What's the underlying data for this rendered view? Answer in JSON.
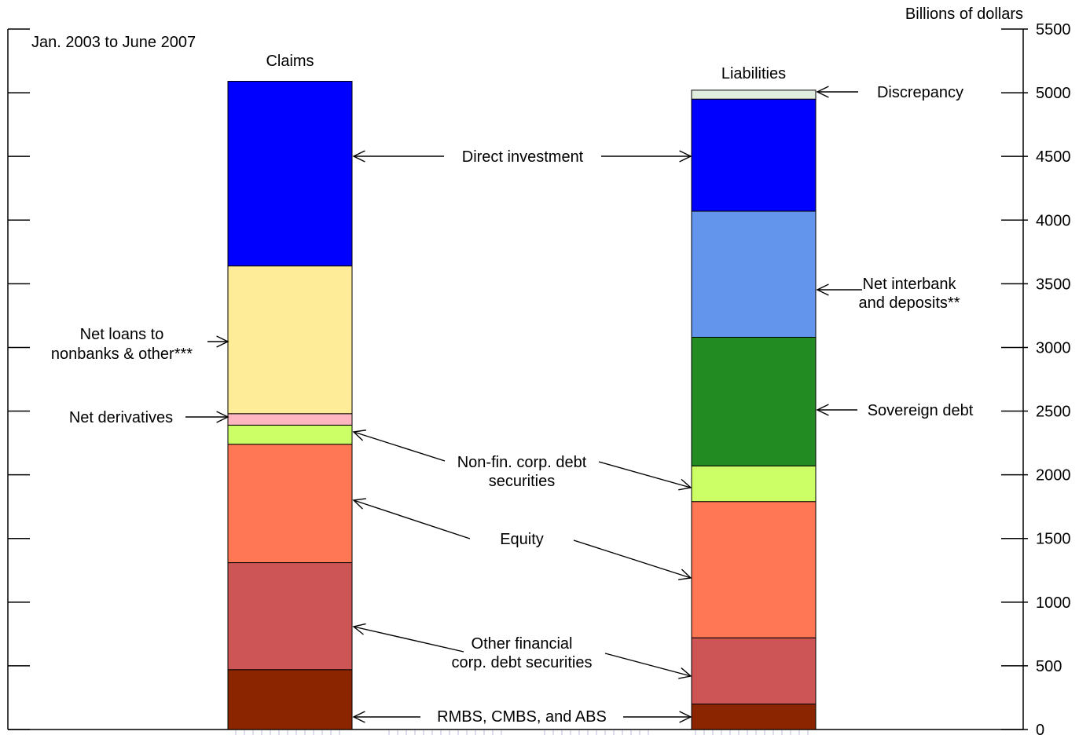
{
  "chart_data": {
    "type": "bar",
    "subtitle": "Jan. 2003 to June 2007",
    "ylabel": "Billions of dollars",
    "ylim": [
      0,
      5500
    ],
    "yticks": [
      0,
      500,
      1000,
      1500,
      2000,
      2500,
      3000,
      3500,
      4000,
      4500,
      5000,
      5500
    ],
    "categories": [
      "Claims",
      "Liabilities"
    ],
    "series": [
      {
        "name": "RMBS, CMBS, and ABS",
        "color": "#8B2500",
        "values": [
          470,
          200
        ]
      },
      {
        "name": "Other financial corp. debt securities",
        "color": "#CD5555",
        "values": [
          840,
          520
        ]
      },
      {
        "name": "Equity",
        "color": "#FF7755",
        "values": [
          930,
          1070
        ]
      },
      {
        "name": "Non-fin. corp. debt securities",
        "color": "#CCFF66",
        "values": [
          150,
          280
        ]
      },
      {
        "name": "Net derivatives",
        "color": "#FFB6C1",
        "values": [
          90,
          0
        ]
      },
      {
        "name": "Net loans to nonbanks & other***",
        "color": "#FFEC99",
        "values": [
          1160,
          0
        ]
      },
      {
        "name": "Sovereign debt",
        "color": "#228B22",
        "values": [
          0,
          1010
        ]
      },
      {
        "name": "Net interbank and deposits**",
        "color": "#6495ED",
        "values": [
          0,
          990
        ]
      },
      {
        "name": "Direct investment",
        "color": "#0000FF",
        "values": [
          1450,
          880
        ]
      },
      {
        "name": "Discrepancy",
        "color": "#E0EEE0",
        "values": [
          0,
          70
        ]
      }
    ],
    "annotations": {
      "direct_investment": "Direct investment",
      "discrepancy": "Discrepancy",
      "net_interbank_line1": "Net interbank",
      "net_interbank_line2": "and deposits**",
      "net_loans_line1": "Net loans to",
      "net_loans_line2": "nonbanks & other***",
      "sovereign_debt": "Sovereign debt",
      "net_derivatives": "Net derivatives",
      "nonfin_line1": "Non-fin. corp. debt",
      "nonfin_line2": "securities",
      "equity": "Equity",
      "other_fin_line1": "Other financial",
      "other_fin_line2": "corp. debt securities",
      "rmbs": "RMBS, CMBS, and ABS"
    }
  }
}
